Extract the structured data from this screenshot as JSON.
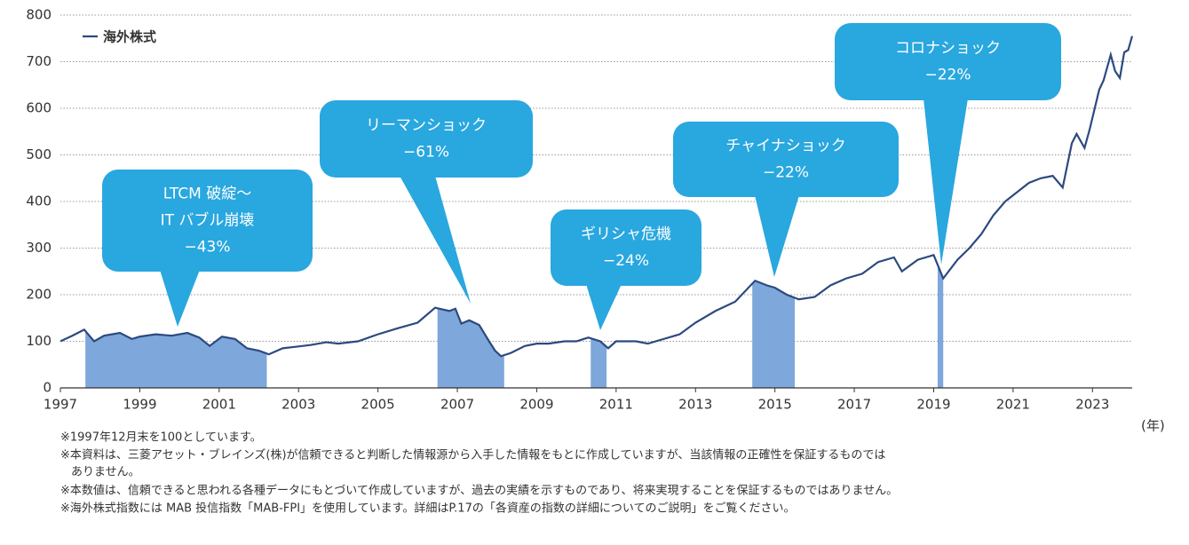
{
  "chart_data": {
    "type": "line",
    "legend": "top-left",
    "grid": true,
    "x_unit_label": "(年)",
    "xlim": [
      1997,
      2024
    ],
    "xticks": [
      1997,
      1999,
      2001,
      2003,
      2005,
      2007,
      2009,
      2011,
      2013,
      2015,
      2017,
      2019,
      2021,
      2023
    ],
    "ylim": [
      0,
      800
    ],
    "yticks": [
      0,
      100,
      200,
      300,
      400,
      500,
      600,
      700,
      800
    ],
    "x": [
      1997.0,
      1997.3,
      1997.6,
      1997.85,
      1998.1,
      1998.5,
      1998.8,
      1999.0,
      1999.4,
      1999.8,
      2000.2,
      2000.5,
      2000.76,
      2001.07,
      2001.4,
      2001.7,
      2002.0,
      2002.25,
      2002.6,
      2002.9,
      2003.3,
      2003.7,
      2004.0,
      2004.5,
      2005.0,
      2005.5,
      2006.0,
      2006.44,
      2006.8,
      2006.95,
      2007.1,
      2007.3,
      2007.55,
      2007.8,
      2007.95,
      2008.1,
      2008.35,
      2008.7,
      2009.0,
      2009.3,
      2009.7,
      2010.0,
      2010.3,
      2010.6,
      2010.8,
      2011.0,
      2011.5,
      2011.8,
      2012.2,
      2012.6,
      2013.0,
      2013.5,
      2014.0,
      2014.5,
      2014.8,
      2015.0,
      2015.3,
      2015.6,
      2016.0,
      2016.4,
      2016.8,
      2017.2,
      2017.6,
      2018.0,
      2018.2,
      2018.6,
      2019.0,
      2019.24,
      2019.6,
      2019.9,
      2020.2,
      2020.5,
      2020.8,
      2021.1,
      2021.4,
      2021.7,
      2022.0,
      2022.25,
      2022.48,
      2022.6,
      2022.8,
      2022.93,
      2023.17,
      2023.28,
      2023.46,
      2023.57,
      2023.69,
      2023.8,
      2023.9,
      2024.0
    ],
    "series": [
      {
        "name": "海外株式",
        "color": "#2c4a7e",
        "values": [
          100,
          112,
          125,
          100,
          112,
          118,
          105,
          110,
          115,
          112,
          118,
          108,
          90,
          110,
          105,
          85,
          80,
          72,
          85,
          88,
          92,
          98,
          95,
          100,
          115,
          128,
          140,
          172,
          165,
          170,
          138,
          145,
          135,
          100,
          80,
          68,
          75,
          90,
          95,
          95,
          100,
          100,
          108,
          100,
          85,
          100,
          100,
          95,
          105,
          115,
          140,
          165,
          185,
          230,
          220,
          215,
          200,
          190,
          195,
          220,
          235,
          245,
          270,
          280,
          250,
          275,
          285,
          235,
          275,
          300,
          330,
          370,
          400,
          420,
          440,
          450,
          455,
          430,
          525,
          545,
          515,
          555,
          640,
          660,
          715,
          680,
          665,
          720,
          725,
          755
        ]
      }
    ],
    "shaded_periods": [
      {
        "start": 1997.63,
        "end": 2002.2
      },
      {
        "start": 2006.5,
        "end": 2008.18
      },
      {
        "start": 2010.36,
        "end": 2010.76
      },
      {
        "start": 2014.43,
        "end": 2015.5
      },
      {
        "start": 2019.1,
        "end": 2019.24
      }
    ],
    "shade_color": "#7ea7db",
    "callout_color": "#29a7df",
    "annotations": [
      {
        "lines": [
          "LTCM 破綻～",
          "IT バブル崩壊",
          "−43%"
        ]
      },
      {
        "lines": [
          "リーマンショック",
          "−61%"
        ]
      },
      {
        "lines": [
          "ギリシャ危機",
          "−24%"
        ]
      },
      {
        "lines": [
          "チャイナショック",
          "−22%"
        ]
      },
      {
        "lines": [
          "コロナショック",
          "−22%"
        ]
      }
    ]
  },
  "notes": [
    "※1997年12月末を100としています。",
    "※本資料は、三菱アセット・ブレインズ(株)が信頼できると判断した情報源から入手した情報をもとに作成していますが、当該情報の正確性を保証するものでは",
    "ありません。",
    "※本数値は、信頼できると思われる各種データにもとづいて作成していますが、過去の実績を示すものであり、将来実現することを保証するものではありません。",
    "※海外株式指数には MAB 投信指数「MAB-FPI」を使用しています。詳細はP.17の「各資産の指数の詳細についてのご説明」をご覧ください。"
  ]
}
